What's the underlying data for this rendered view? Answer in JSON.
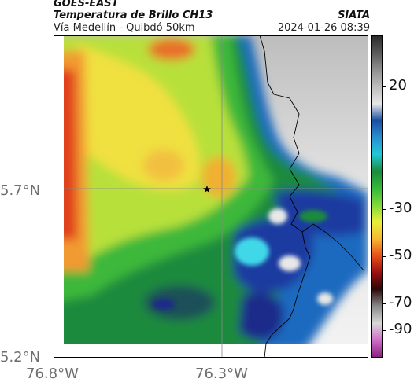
{
  "header": {
    "title": "GOES-EAST",
    "subtitle": "Temperatura de Brillo CH13",
    "brand": "SIATA",
    "location": "Vía Medellín - Quibdó 50km",
    "timestamp": "2024-01-26 08:39"
  },
  "axes": {
    "y_ticks": [
      "5.7°N",
      "5.2°N"
    ],
    "x_ticks": [
      "76.8°W",
      "76.3°W"
    ]
  },
  "marker": {
    "symbol": "★",
    "name": "reference-point"
  },
  "colorbar": {
    "ticks": [
      "20",
      "-30",
      "-50",
      "-70",
      "-90"
    ],
    "stops": [
      "#2b2b2b",
      "#5a5a5a",
      "#8f8f8f",
      "#bdbdbd",
      "#e6e6e6",
      "#1a4fa0",
      "#2a8fd0",
      "#20c8d8",
      "#1c8a3c",
      "#35b83a",
      "#7fd83a",
      "#e8f03a",
      "#f7b733",
      "#e8501a",
      "#9a1010",
      "#2a0808",
      "#8a8a8a",
      "#d8d8d8",
      "#d070c8",
      "#8a2080"
    ]
  },
  "colors": {
    "cold_deep": "#1c2a8a",
    "cold_blue": "#1f6bc0",
    "cyan": "#3fd8e8",
    "green_dark": "#1e8a3c",
    "green": "#3cb83a",
    "yellow_green": "#b8e03a",
    "yellow": "#f0e040",
    "orange": "#f29a30",
    "red": "#e0401a",
    "clear_sky": "#e4e4e4",
    "gridline": "#888888"
  }
}
